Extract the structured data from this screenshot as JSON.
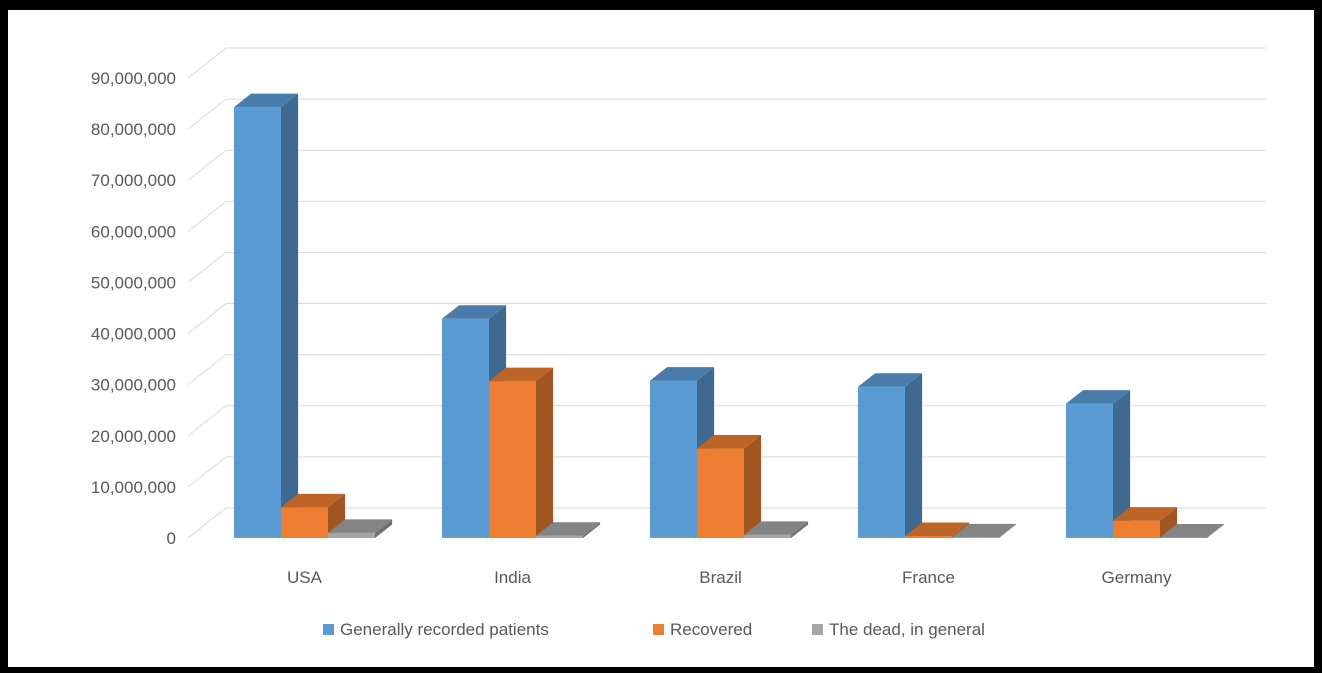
{
  "chart_data": {
    "type": "bar",
    "style": "3d-clustered-column",
    "categories": [
      "USA",
      "India",
      "Brazil",
      "France",
      "Germany"
    ],
    "series": [
      {
        "name": "Generally recorded patients",
        "color": "#5B9BD5",
        "values": [
          84300000,
          42900000,
          30800000,
          29600000,
          26300000
        ]
      },
      {
        "name": "Recovered",
        "color": "#ED7D31",
        "values": [
          6000000,
          30700000,
          17500000,
          400000,
          3400000
        ]
      },
      {
        "name": "The dead, in general",
        "color": "#A5A5A5",
        "values": [
          1000000,
          450000,
          610000,
          120000,
          110000
        ]
      }
    ],
    "ylim": [
      0,
      90000000
    ],
    "yticks": [
      "0",
      "10,000,000",
      "20,000,000",
      "30,000,000",
      "40,000,000",
      "50,000,000",
      "60,000,000",
      "70,000,000",
      "80,000,000",
      "90,000,000"
    ],
    "grid": true,
    "legend_position": "bottom"
  }
}
